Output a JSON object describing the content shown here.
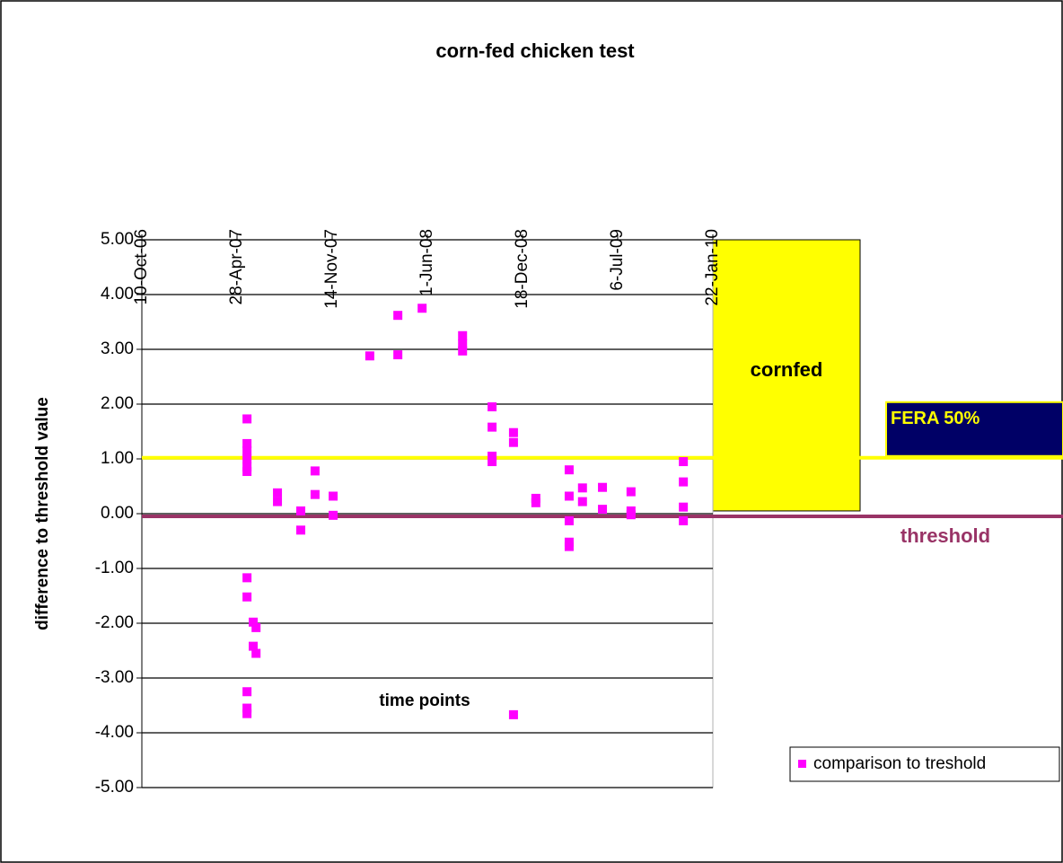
{
  "chart_data": {
    "type": "scatter",
    "title": "corn-fed chicken test",
    "xlabel": "time points",
    "ylabel": "difference to threshold value",
    "xlim": [
      "2006-10-10",
      "2010-01-22"
    ],
    "xticks": [
      {
        "value": "2006-10-10",
        "label": "10-Oct-06"
      },
      {
        "value": "2007-04-28",
        "label": "28-Apr-07"
      },
      {
        "value": "2007-11-14",
        "label": "14-Nov-07"
      },
      {
        "value": "2008-06-01",
        "label": "1-Jun-08"
      },
      {
        "value": "2008-12-18",
        "label": "18-Dec-08"
      },
      {
        "value": "2009-07-06",
        "label": "6-Jul-09"
      },
      {
        "value": "2010-01-22",
        "label": "22-Jan-10"
      }
    ],
    "ylim": [
      -5,
      5
    ],
    "yticks": [
      {
        "value": 5,
        "label": "5.00"
      },
      {
        "value": 4,
        "label": "4.00"
      },
      {
        "value": 3,
        "label": "3.00"
      },
      {
        "value": 2,
        "label": "2.00"
      },
      {
        "value": 1,
        "label": "1.00"
      },
      {
        "value": 0,
        "label": "0.00"
      },
      {
        "value": -1,
        "label": "-1.00"
      },
      {
        "value": -2,
        "label": "-2.00"
      },
      {
        "value": -3,
        "label": "-3.00"
      },
      {
        "value": -4,
        "label": "-4.00"
      },
      {
        "value": -5,
        "label": "-5.00"
      }
    ],
    "grid": true,
    "legend_position": "lower right",
    "series": [
      {
        "name": "comparison to treshold",
        "color": "#ff00ff",
        "x": [
          "2007-05-19",
          "2007-05-19",
          "2007-05-19",
          "2007-05-19",
          "2007-05-19",
          "2007-05-19",
          "2007-05-19",
          "2007-05-19",
          "2007-05-19",
          "2007-05-19",
          "2007-05-19",
          "2007-06-01",
          "2007-06-01",
          "2007-06-07",
          "2007-06-07",
          "2007-07-22",
          "2007-07-22",
          "2007-09-09",
          "2007-09-09",
          "2007-10-09",
          "2007-10-09",
          "2007-11-16",
          "2007-11-16",
          "2008-02-01",
          "2008-03-31",
          "2008-03-31",
          "2008-05-21",
          "2008-08-14",
          "2008-08-14",
          "2008-08-14",
          "2008-10-15",
          "2008-10-15",
          "2008-10-15",
          "2008-10-15",
          "2008-11-29",
          "2008-11-29",
          "2008-11-29",
          "2009-01-15",
          "2009-01-15",
          "2009-03-26",
          "2009-03-26",
          "2009-03-26",
          "2009-03-26",
          "2009-03-26",
          "2009-04-23",
          "2009-04-23",
          "2009-06-04",
          "2009-06-04",
          "2009-08-03",
          "2009-08-03",
          "2009-08-03",
          "2009-11-21",
          "2009-11-21",
          "2009-11-21",
          "2009-11-21"
        ],
        "values": [
          1.73,
          1.28,
          1.15,
          1.0,
          0.85,
          0.77,
          -1.17,
          -1.52,
          -3.25,
          -3.55,
          -3.65,
          -1.98,
          -2.42,
          -2.08,
          -2.55,
          0.38,
          0.22,
          0.05,
          -0.3,
          0.78,
          0.35,
          0.32,
          -0.03,
          2.88,
          3.62,
          2.9,
          3.75,
          3.25,
          3.1,
          2.97,
          1.95,
          1.58,
          1.05,
          0.95,
          1.48,
          1.3,
          -3.67,
          0.28,
          0.2,
          0.8,
          0.32,
          -0.13,
          -0.52,
          -0.6,
          0.47,
          0.22,
          0.48,
          0.08,
          0.4,
          0.05,
          -0.02,
          0.95,
          0.58,
          0.12,
          -0.13
        ]
      }
    ],
    "reference_lines": [
      {
        "label": "FERA 50%",
        "value": 1.02,
        "color": "#ffff00"
      },
      {
        "label": "threshold",
        "value": -0.05,
        "color": "#993366"
      }
    ],
    "cornfed_box": {
      "label": "cornfed",
      "ylim": [
        0.05,
        5
      ],
      "color": "#ffff00"
    }
  }
}
